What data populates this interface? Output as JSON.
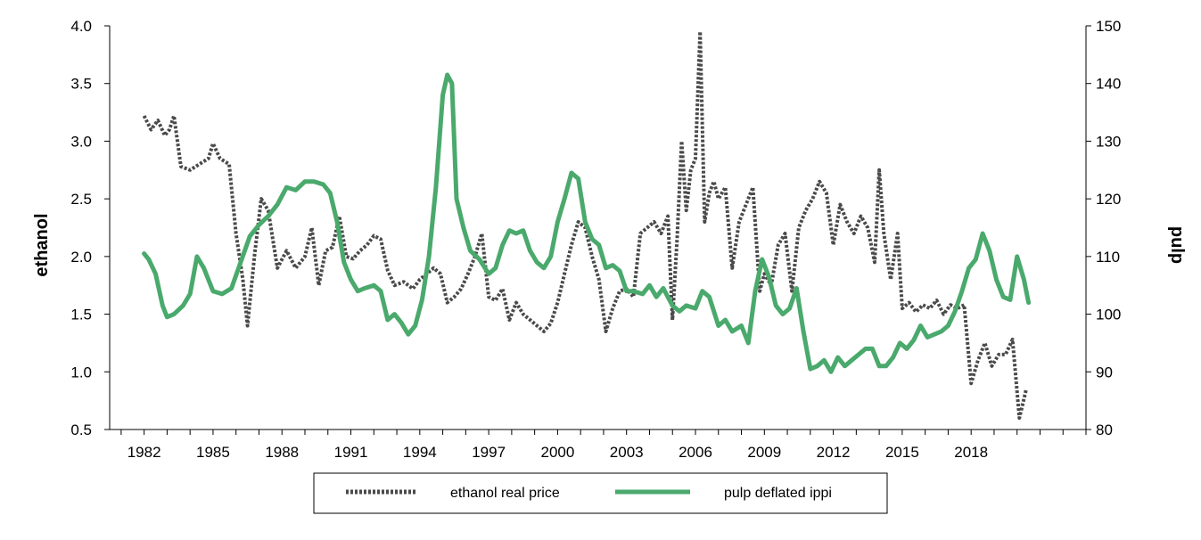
{
  "chart_data": {
    "type": "line",
    "title": "",
    "xlabel": "",
    "ylabel_left": "ethanol",
    "ylabel_right": "pulp",
    "xlim": [
      1980.5,
      2023.0
    ],
    "ylim_left": [
      0.5,
      4.0
    ],
    "ylim_right": [
      80,
      150
    ],
    "x_ticks": [
      1982,
      1985,
      1988,
      1991,
      1994,
      1997,
      2000,
      2003,
      2006,
      2009,
      2012,
      2015,
      2018
    ],
    "y_ticks_left": [
      "0.5",
      "1.0",
      "1.5",
      "2.0",
      "2.5",
      "3.0",
      "3.5",
      "4.0"
    ],
    "y_ticks_right": [
      "80",
      "90",
      "100",
      "110",
      "120",
      "130",
      "140",
      "150"
    ],
    "grid": false,
    "legend_position": "bottom",
    "series": [
      {
        "name": "ethanol real price",
        "axis": "left",
        "color": "#4a4a4a",
        "style": "dotted",
        "x": [
          1982.0,
          1982.3,
          1982.6,
          1982.9,
          1983.1,
          1983.3,
          1983.6,
          1984.0,
          1984.4,
          1984.8,
          1985.0,
          1985.3,
          1985.7,
          1986.0,
          1986.3,
          1986.5,
          1986.8,
          1987.1,
          1987.4,
          1987.8,
          1988.2,
          1988.6,
          1989.0,
          1989.3,
          1989.6,
          1989.9,
          1990.2,
          1990.5,
          1990.8,
          1991.1,
          1991.4,
          1991.7,
          1992.0,
          1992.3,
          1992.6,
          1992.9,
          1993.3,
          1993.7,
          1994.0,
          1994.3,
          1994.6,
          1994.9,
          1995.2,
          1995.5,
          1995.8,
          1996.1,
          1996.4,
          1996.7,
          1997.0,
          1997.3,
          1997.6,
          1997.9,
          1998.2,
          1998.5,
          1998.8,
          1999.1,
          1999.4,
          1999.7,
          2000.0,
          2000.3,
          2000.6,
          2000.9,
          2001.2,
          2001.5,
          2001.8,
          2002.1,
          2002.4,
          2002.7,
          2003.0,
          2003.3,
          2003.6,
          2003.9,
          2004.2,
          2004.5,
          2004.8,
          2005.0,
          2005.2,
          2005.4,
          2005.6,
          2005.8,
          2006.0,
          2006.2,
          2006.4,
          2006.6,
          2006.8,
          2007.0,
          2007.3,
          2007.6,
          2007.9,
          2008.2,
          2008.5,
          2008.8,
          2009.0,
          2009.3,
          2009.6,
          2009.9,
          2010.2,
          2010.5,
          2010.8,
          2011.1,
          2011.4,
          2011.7,
          2012.0,
          2012.3,
          2012.6,
          2012.9,
          2013.2,
          2013.5,
          2013.8,
          2014.0,
          2014.2,
          2014.5,
          2014.8,
          2015.0,
          2015.3,
          2015.6,
          2015.9,
          2016.2,
          2016.5,
          2016.8,
          2017.1,
          2017.4,
          2017.7,
          2018.0,
          2018.3,
          2018.6,
          2018.9,
          2019.2,
          2019.5,
          2019.8,
          2020.1,
          2020.4
        ],
        "values": [
          3.22,
          3.1,
          3.18,
          3.05,
          3.1,
          3.22,
          2.78,
          2.75,
          2.8,
          2.85,
          2.98,
          2.85,
          2.8,
          2.2,
          1.8,
          1.4,
          2.0,
          2.5,
          2.4,
          1.9,
          2.05,
          1.9,
          2.0,
          2.25,
          1.75,
          2.05,
          2.08,
          2.35,
          2.0,
          1.98,
          2.05,
          2.1,
          2.18,
          2.15,
          1.88,
          1.75,
          1.78,
          1.72,
          1.8,
          1.85,
          1.9,
          1.85,
          1.6,
          1.65,
          1.72,
          1.85,
          2.0,
          2.2,
          1.65,
          1.62,
          1.72,
          1.45,
          1.6,
          1.5,
          1.45,
          1.4,
          1.35,
          1.42,
          1.6,
          1.85,
          2.1,
          2.3,
          2.25,
          2.0,
          1.8,
          1.35,
          1.55,
          1.7,
          1.72,
          1.65,
          2.2,
          2.25,
          2.3,
          2.2,
          2.35,
          1.45,
          2.15,
          3.0,
          2.4,
          2.75,
          2.85,
          3.95,
          2.3,
          2.55,
          2.65,
          2.5,
          2.6,
          1.9,
          2.3,
          2.45,
          2.6,
          1.7,
          1.85,
          1.75,
          2.1,
          2.2,
          1.7,
          2.25,
          2.4,
          2.5,
          2.65,
          2.55,
          2.1,
          2.45,
          2.3,
          2.2,
          2.35,
          2.25,
          1.95,
          2.75,
          2.2,
          1.8,
          2.2,
          1.55,
          1.6,
          1.52,
          1.58,
          1.55,
          1.62,
          1.5,
          1.58,
          1.55,
          1.58,
          0.9,
          1.1,
          1.25,
          1.05,
          1.15,
          1.15,
          1.28,
          0.6,
          0.85
        ]
      },
      {
        "name": "pulp deflated ippi",
        "axis": "right",
        "color": "#4aa96c",
        "style": "solid",
        "x": [
          1982.0,
          1982.2,
          1982.5,
          1982.8,
          1983.0,
          1983.3,
          1983.7,
          1984.0,
          1984.3,
          1984.6,
          1985.0,
          1985.4,
          1985.8,
          1986.2,
          1986.6,
          1987.0,
          1987.4,
          1987.8,
          1988.2,
          1988.6,
          1989.0,
          1989.4,
          1989.8,
          1990.1,
          1990.4,
          1990.7,
          1991.0,
          1991.3,
          1991.6,
          1992.0,
          1992.3,
          1992.6,
          1992.9,
          1993.2,
          1993.5,
          1993.8,
          1994.1,
          1994.4,
          1994.7,
          1995.0,
          1995.2,
          1995.4,
          1995.6,
          1995.9,
          1996.2,
          1996.6,
          1997.0,
          1997.3,
          1997.6,
          1997.9,
          1998.2,
          1998.5,
          1998.8,
          1999.1,
          1999.4,
          1999.7,
          2000.0,
          2000.3,
          2000.6,
          2000.9,
          2001.2,
          2001.5,
          2001.8,
          2002.1,
          2002.4,
          2002.7,
          2003.0,
          2003.3,
          2003.7,
          2004.0,
          2004.3,
          2004.6,
          2005.0,
          2005.3,
          2005.6,
          2006.0,
          2006.3,
          2006.6,
          2007.0,
          2007.3,
          2007.6,
          2008.0,
          2008.3,
          2008.6,
          2008.9,
          2009.2,
          2009.5,
          2009.8,
          2010.1,
          2010.4,
          2010.7,
          2011.0,
          2011.3,
          2011.6,
          2011.9,
          2012.2,
          2012.5,
          2012.8,
          2013.1,
          2013.4,
          2013.7,
          2014.0,
          2014.3,
          2014.6,
          2014.9,
          2015.2,
          2015.5,
          2015.8,
          2016.1,
          2016.4,
          2016.7,
          2017.0,
          2017.3,
          2017.6,
          2017.9,
          2018.2,
          2018.5,
          2018.8,
          2019.1,
          2019.4,
          2019.7,
          2020.0,
          2020.3,
          2020.5
        ],
        "values": [
          110.5,
          109.5,
          107.0,
          101.5,
          99.5,
          100.0,
          101.5,
          103.5,
          110.0,
          108.0,
          104.0,
          103.5,
          104.5,
          109.0,
          113.5,
          115.5,
          117.0,
          119.0,
          122.0,
          121.5,
          123.0,
          123.0,
          122.5,
          121.0,
          116.0,
          109.0,
          106.0,
          104.0,
          104.5,
          105.0,
          104.0,
          99.0,
          100.0,
          98.5,
          96.5,
          98.0,
          102.5,
          110.0,
          122.0,
          138.0,
          141.5,
          140.0,
          120.0,
          115.0,
          111.0,
          109.5,
          107.0,
          108.0,
          112.0,
          114.5,
          114.0,
          114.5,
          111.0,
          109.0,
          108.0,
          110.0,
          116.0,
          120.0,
          124.5,
          123.5,
          116.0,
          113.0,
          112.0,
          108.0,
          108.5,
          107.5,
          104.0,
          104.0,
          103.5,
          105.0,
          103.0,
          104.5,
          101.5,
          100.5,
          101.5,
          101.0,
          104.0,
          103.0,
          98.0,
          99.0,
          97.0,
          98.0,
          95.0,
          104.0,
          109.5,
          106.5,
          101.5,
          100.0,
          101.0,
          104.5,
          97.0,
          90.5,
          91.0,
          92.0,
          90.0,
          92.5,
          91.0,
          92.0,
          93.0,
          94.0,
          94.0,
          91.0,
          91.0,
          92.5,
          95.0,
          94.0,
          95.5,
          98.0,
          96.0,
          96.5,
          97.0,
          98.0,
          100.5,
          104.0,
          108.0,
          109.5,
          114.0,
          111.0,
          106.0,
          103.0,
          102.5,
          110.0,
          106.0,
          102.0
        ]
      }
    ]
  }
}
